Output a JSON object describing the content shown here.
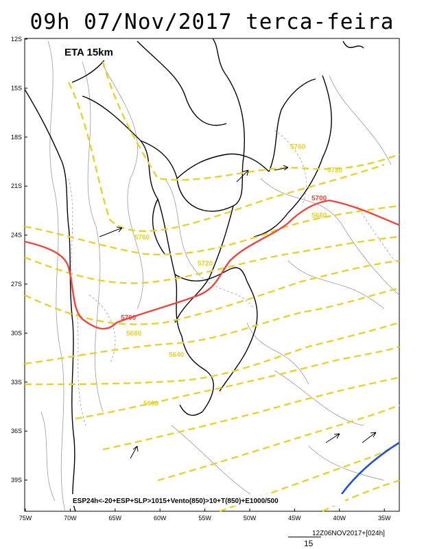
{
  "header": {
    "title": "09h 07/Nov/2017 terca-feira"
  },
  "map": {
    "model_label": "ETA 15km",
    "legend": "ESP24h<-20+ESP+SLP>1015+Vento(850)>10+T(850)+E1000/500",
    "lat_ticks": [
      "12S",
      "15S",
      "18S",
      "21S",
      "24S",
      "27S",
      "30S",
      "33S",
      "36S",
      "39S"
    ],
    "lon_ticks": [
      "75W",
      "70W",
      "65W",
      "60W",
      "55W",
      "50W",
      "45W",
      "40W",
      "35W"
    ],
    "contour_labels": {
      "c5760a": "5760",
      "c5720a": "5720",
      "c5760b": "5760",
      "c5720b": "5720",
      "c5700a": "5700",
      "c5680a": "5680",
      "c5700b": "5700",
      "c5680b": "5680",
      "c5640": "5640",
      "c5600": "5600"
    },
    "colors": {
      "yellow": "#e6d22a",
      "red": "#f0443a",
      "blue": "#1f4fe0",
      "gray": "#9a9a9a",
      "border": "#000000"
    }
  },
  "footer": {
    "timestamp": "12Z06NOV2017+[024h]",
    "scale": "15"
  }
}
